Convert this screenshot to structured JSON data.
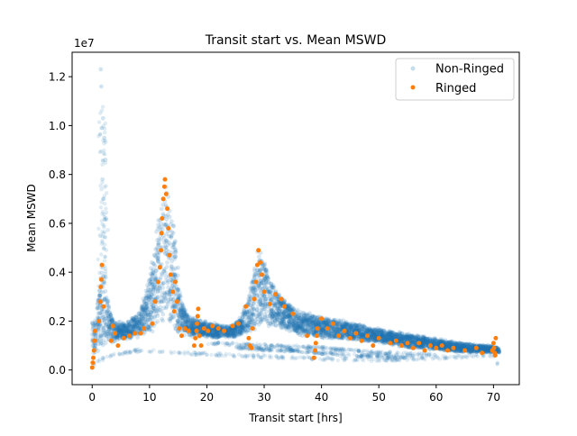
{
  "chart_data": {
    "type": "scatter",
    "title": "Transit start vs. Mean MSWD",
    "xlabel": "Transit start [hrs]",
    "ylabel": "Mean MSWD",
    "y_offset_text": "1e7",
    "xlim": [
      -3.5,
      74.5
    ],
    "ylim": [
      -0.06,
      1.3
    ],
    "y_unit_multiplier": 10000000,
    "xticks": [
      0,
      10,
      20,
      30,
      40,
      50,
      60,
      70
    ],
    "yticks": [
      0.0,
      0.2,
      0.4,
      0.6,
      0.8,
      1.0,
      1.2
    ],
    "ytick_labels": [
      "0.0",
      "0.2",
      "0.4",
      "0.6",
      "0.8",
      "1.0",
      "1.2"
    ],
    "grid": false,
    "legend_position": "top-right",
    "series": [
      {
        "name": "Non-Ringed",
        "color": "#1f77b4",
        "style": "dense semi-transparent markers",
        "envelope_upper": [
          [
            0.0,
            0.2
          ],
          [
            0.5,
            0.21
          ],
          [
            1.0,
            0.32
          ],
          [
            1.5,
            0.42
          ],
          [
            2.0,
            0.4
          ],
          [
            3.0,
            0.28
          ],
          [
            4.0,
            0.2
          ],
          [
            6.0,
            0.2
          ],
          [
            8.0,
            0.24
          ],
          [
            9.5,
            0.34
          ],
          [
            10.5,
            0.46
          ],
          [
            11.5,
            0.64
          ],
          [
            12.3,
            0.78
          ],
          [
            13.0,
            0.79
          ],
          [
            13.8,
            0.74
          ],
          [
            14.5,
            0.56
          ],
          [
            15.5,
            0.3
          ],
          [
            17.0,
            0.22
          ],
          [
            20.0,
            0.2
          ],
          [
            24.0,
            0.18
          ],
          [
            26.0,
            0.22
          ],
          [
            27.5,
            0.34
          ],
          [
            28.5,
            0.48
          ],
          [
            29.0,
            0.51
          ],
          [
            30.0,
            0.48
          ],
          [
            31.0,
            0.38
          ],
          [
            33.0,
            0.31
          ],
          [
            36.0,
            0.25
          ],
          [
            40.0,
            0.22
          ],
          [
            45.0,
            0.2
          ],
          [
            50.0,
            0.17
          ],
          [
            55.0,
            0.15
          ],
          [
            60.0,
            0.13
          ],
          [
            65.0,
            0.11
          ],
          [
            70.0,
            0.1
          ],
          [
            71.0,
            0.09
          ]
        ],
        "envelope_lower": [
          [
            0.0,
            0.05
          ],
          [
            1.0,
            0.06
          ],
          [
            2.0,
            0.09
          ],
          [
            3.0,
            0.11
          ],
          [
            5.0,
            0.12
          ],
          [
            8.0,
            0.13
          ],
          [
            10.0,
            0.14
          ],
          [
            12.0,
            0.15
          ],
          [
            15.0,
            0.14
          ],
          [
            20.0,
            0.13
          ],
          [
            25.0,
            0.13
          ],
          [
            28.0,
            0.15
          ],
          [
            30.0,
            0.17
          ],
          [
            33.0,
            0.16
          ],
          [
            36.0,
            0.14
          ],
          [
            40.0,
            0.13
          ],
          [
            45.0,
            0.12
          ],
          [
            50.0,
            0.11
          ],
          [
            55.0,
            0.09
          ],
          [
            60.0,
            0.08
          ],
          [
            65.0,
            0.07
          ],
          [
            70.0,
            0.07
          ],
          [
            71.0,
            0.07
          ]
        ],
        "spikes": [
          [
            1.5,
            1.23
          ],
          [
            1.6,
            1.16
          ],
          [
            1.9,
            1.03
          ],
          [
            2.1,
            0.95
          ],
          [
            2.3,
            0.86
          ],
          [
            1.8,
            0.78
          ],
          [
            2.0,
            0.7
          ],
          [
            2.4,
            0.62
          ],
          [
            1.4,
            0.55
          ]
        ],
        "faint_bands": [
          [
            [
              0.0,
              0.02
            ],
            [
              3.0,
              0.06
            ],
            [
              8.0,
              0.08
            ],
            [
              15.0,
              0.07
            ],
            [
              25.0,
              0.06
            ],
            [
              35.0,
              0.05
            ],
            [
              50.0,
              0.04
            ],
            [
              60.0,
              0.05
            ],
            [
              70.0,
              0.06
            ],
            [
              71.0,
              0.01
            ]
          ],
          [
            [
              20.0,
              0.11
            ],
            [
              30.0,
              0.1
            ],
            [
              40.0,
              0.09
            ],
            [
              50.0,
              0.07
            ],
            [
              60.0,
              0.06
            ]
          ],
          [
            [
              25.0,
              0.09
            ],
            [
              35.0,
              0.08
            ],
            [
              45.0,
              0.06
            ],
            [
              55.0,
              0.05
            ]
          ]
        ]
      },
      {
        "name": "Ringed",
        "color": "#ff7f0e",
        "points": [
          [
            0.0,
            0.01
          ],
          [
            0.1,
            0.03
          ],
          [
            0.2,
            0.05
          ],
          [
            0.3,
            0.08
          ],
          [
            0.4,
            0.12
          ],
          [
            0.5,
            0.16
          ],
          [
            1.2,
            0.2
          ],
          [
            1.4,
            0.28
          ],
          [
            1.5,
            0.34
          ],
          [
            1.6,
            0.37
          ],
          [
            1.7,
            0.43
          ],
          [
            2.0,
            0.26
          ],
          [
            3.3,
            0.12
          ],
          [
            3.6,
            0.18
          ],
          [
            4.0,
            0.15
          ],
          [
            4.5,
            0.1
          ],
          [
            5.5,
            0.13
          ],
          [
            6.5,
            0.14
          ],
          [
            7.5,
            0.15
          ],
          [
            8.5,
            0.15
          ],
          [
            9.0,
            0.17
          ],
          [
            10.5,
            0.19
          ],
          [
            11.0,
            0.28
          ],
          [
            11.5,
            0.36
          ],
          [
            11.8,
            0.42
          ],
          [
            12.0,
            0.49
          ],
          [
            12.1,
            0.56
          ],
          [
            12.2,
            0.62
          ],
          [
            12.4,
            0.7
          ],
          [
            12.6,
            0.75
          ],
          [
            12.7,
            0.78
          ],
          [
            12.9,
            0.72
          ],
          [
            13.1,
            0.66
          ],
          [
            13.3,
            0.58
          ],
          [
            13.5,
            0.47
          ],
          [
            13.7,
            0.39
          ],
          [
            14.1,
            0.32
          ],
          [
            14.3,
            0.24
          ],
          [
            14.5,
            0.36
          ],
          [
            14.8,
            0.28
          ],
          [
            15.2,
            0.17
          ],
          [
            15.6,
            0.14
          ],
          [
            16.2,
            0.17
          ],
          [
            16.8,
            0.16
          ],
          [
            17.8,
            0.1
          ],
          [
            18.0,
            0.13
          ],
          [
            18.2,
            0.16
          ],
          [
            18.3,
            0.19
          ],
          [
            18.4,
            0.22
          ],
          [
            18.5,
            0.25
          ],
          [
            18.7,
            0.14
          ],
          [
            19.0,
            0.1
          ],
          [
            19.5,
            0.17
          ],
          [
            20.2,
            0.16
          ],
          [
            21.0,
            0.18
          ],
          [
            22.0,
            0.17
          ],
          [
            23.0,
            0.16
          ],
          [
            24.5,
            0.18
          ],
          [
            25.5,
            0.19
          ],
          [
            26.8,
            0.26
          ],
          [
            27.3,
            0.13
          ],
          [
            27.5,
            0.1
          ],
          [
            27.8,
            0.09
          ],
          [
            28.0,
            0.17
          ],
          [
            28.3,
            0.29
          ],
          [
            28.6,
            0.36
          ],
          [
            28.8,
            0.43
          ],
          [
            29.0,
            0.49
          ],
          [
            29.3,
            0.44
          ],
          [
            29.6,
            0.39
          ],
          [
            30.0,
            0.32
          ],
          [
            31.0,
            0.27
          ],
          [
            32.0,
            0.31
          ],
          [
            33.0,
            0.29
          ],
          [
            33.5,
            0.26
          ],
          [
            35.0,
            0.23
          ],
          [
            37.5,
            0.14
          ],
          [
            38.7,
            0.05
          ],
          [
            38.9,
            0.08
          ],
          [
            39.0,
            0.11
          ],
          [
            39.2,
            0.14
          ],
          [
            39.3,
            0.17
          ],
          [
            40.0,
            0.21
          ],
          [
            41.0,
            0.17
          ],
          [
            42.0,
            0.19
          ],
          [
            43.0,
            0.14
          ],
          [
            44.0,
            0.16
          ],
          [
            45.0,
            0.13
          ],
          [
            46.0,
            0.15
          ],
          [
            47.0,
            0.12
          ],
          [
            48.0,
            0.14
          ],
          [
            49.0,
            0.1
          ],
          [
            50.0,
            0.13
          ],
          [
            52.0,
            0.11
          ],
          [
            53.0,
            0.12
          ],
          [
            54.0,
            0.1
          ],
          [
            55.0,
            0.11
          ],
          [
            56.0,
            0.09
          ],
          [
            57.0,
            0.11
          ],
          [
            58.0,
            0.08
          ],
          [
            59.0,
            0.1
          ],
          [
            60.0,
            0.09
          ],
          [
            61.0,
            0.1
          ],
          [
            62.0,
            0.08
          ],
          [
            63.0,
            0.09
          ],
          [
            65.0,
            0.08
          ],
          [
            67.0,
            0.09
          ],
          [
            68.0,
            0.07
          ],
          [
            69.8,
            0.08
          ],
          [
            70.0,
            0.11
          ],
          [
            70.1,
            0.09
          ],
          [
            70.2,
            0.07
          ],
          [
            70.3,
            0.06
          ],
          [
            70.4,
            0.13
          ]
        ]
      }
    ]
  }
}
